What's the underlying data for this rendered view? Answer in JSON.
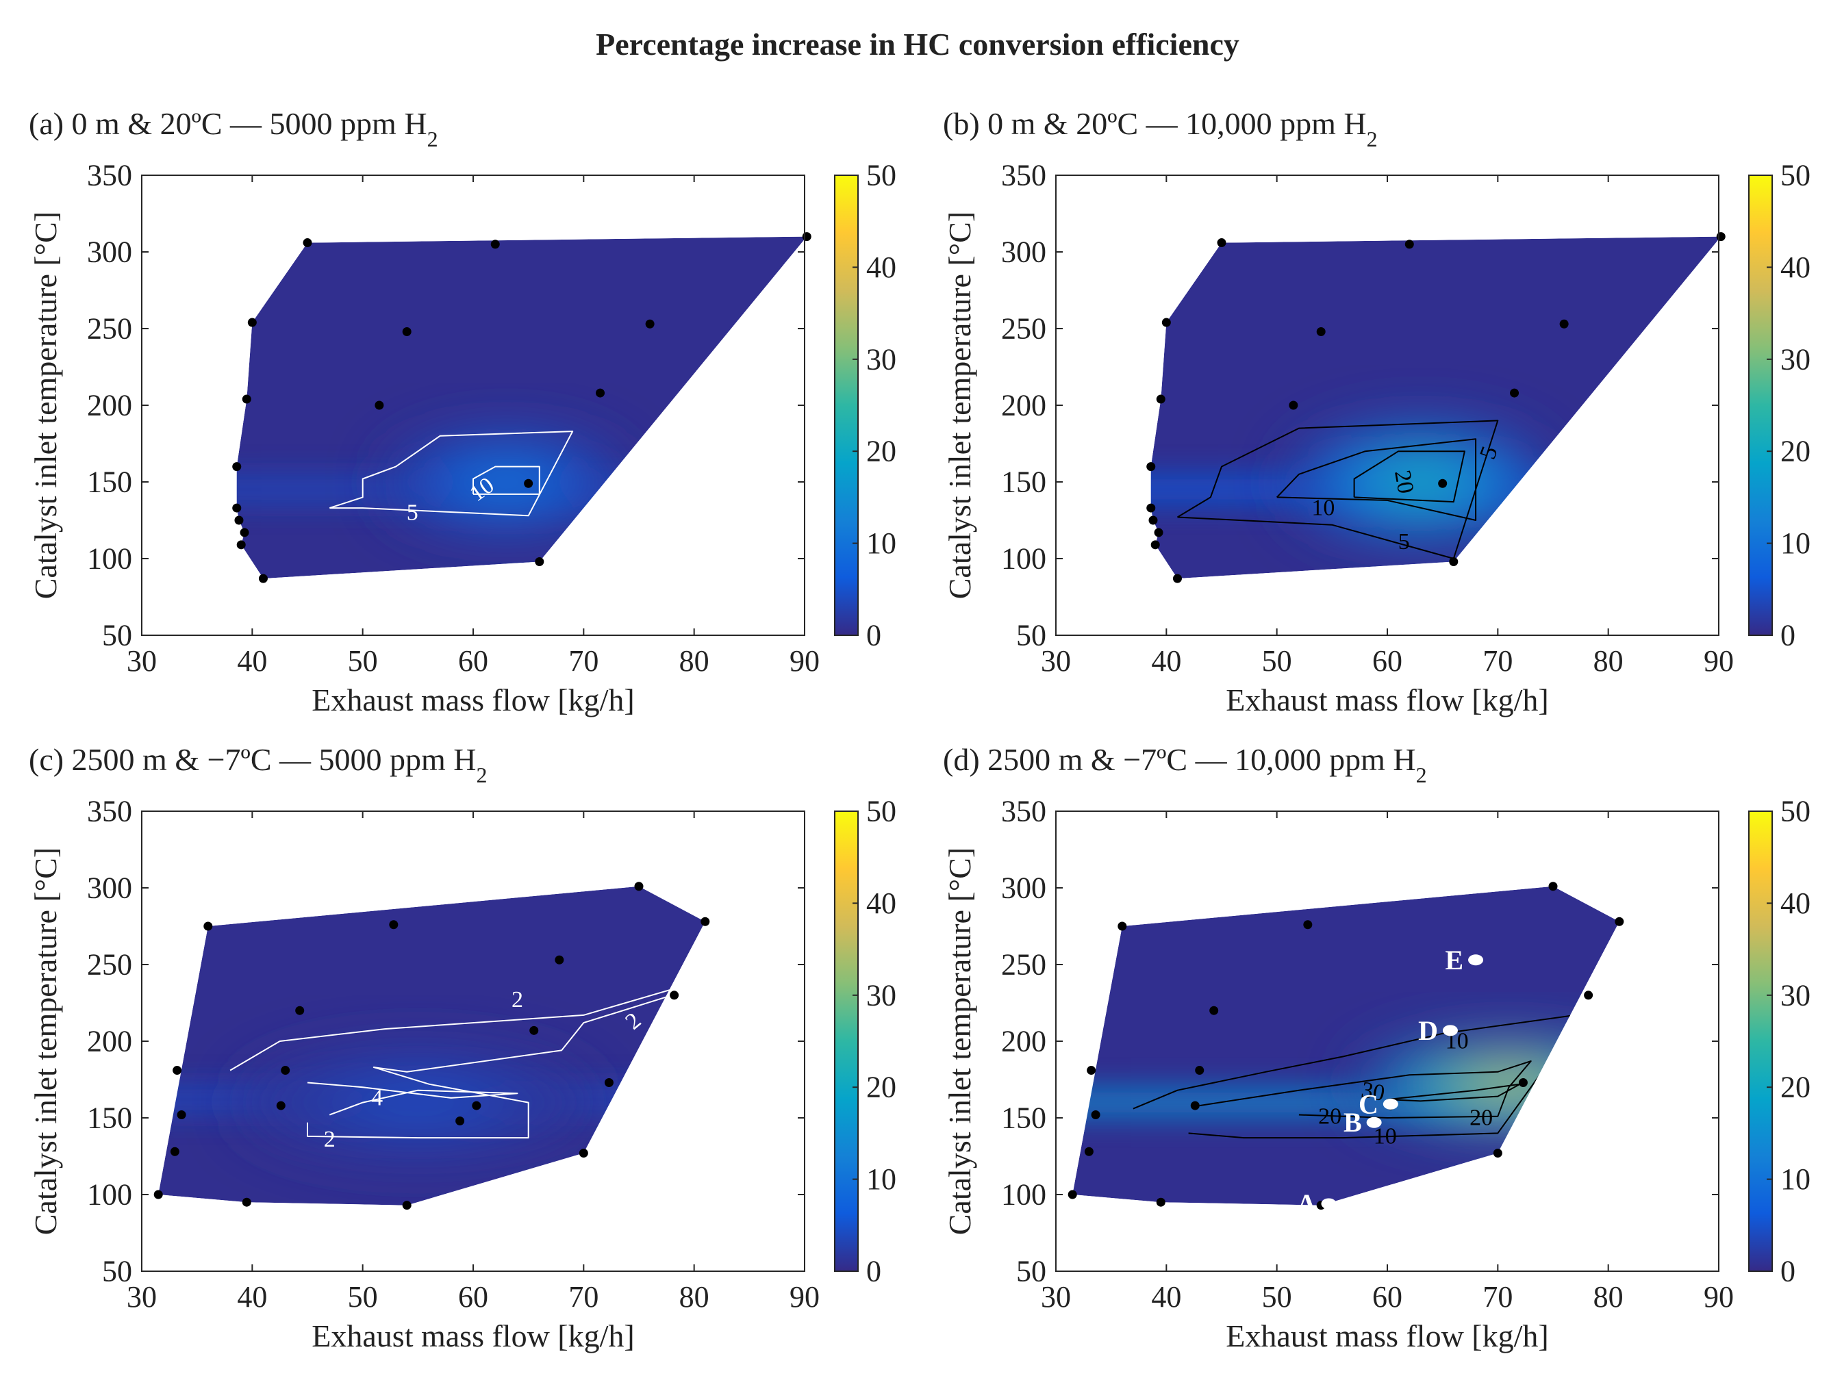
{
  "figure": {
    "title": "Percentage increase in HC conversion efficiency"
  },
  "colors": {
    "parula_stops": [
      "#352a87",
      "#0f5cdd",
      "#1481d6",
      "#06a4ca",
      "#2eb7a4",
      "#87bf77",
      "#d1bb59",
      "#fec832",
      "#f9fb0e"
    ],
    "contour_white": "#ffffff",
    "contour_black": "#000000",
    "axis": "#262626"
  },
  "chart_data": [
    {
      "type": "contour",
      "panel": "a",
      "title_main": "(a) 0 m & 20ºC — 5000 ppm H",
      "title_sub": "2",
      "xlabel": "Exhaust mass flow [kg/h]",
      "ylabel": "Catalyst inlet temperature [°C]",
      "xlim": [
        30,
        90
      ],
      "ylim": [
        50,
        350
      ],
      "xticks": [
        30,
        40,
        50,
        60,
        70,
        80,
        90
      ],
      "yticks": [
        50,
        100,
        150,
        200,
        250,
        300,
        350
      ],
      "clim": [
        0,
        50
      ],
      "cbar_ticks": [
        0,
        10,
        20,
        30,
        40,
        50
      ],
      "hull": [
        [
          41,
          87
        ],
        [
          66,
          98
        ],
        [
          90.2,
          310
        ],
        [
          45,
          306
        ],
        [
          40,
          254
        ],
        [
          39.5,
          204
        ],
        [
          38.6,
          160
        ],
        [
          38.6,
          133
        ],
        [
          38.8,
          125
        ],
        [
          39.3,
          117
        ],
        [
          39,
          109
        ]
      ],
      "hotspot": {
        "x": 63,
        "y": 150,
        "value": 12,
        "rx": 11,
        "ry": 32
      },
      "band": {
        "y": 145,
        "value": 4
      },
      "points": [
        [
          41,
          87
        ],
        [
          66,
          98
        ],
        [
          39,
          109
        ],
        [
          39.3,
          117
        ],
        [
          38.8,
          125
        ],
        [
          38.6,
          133
        ],
        [
          38.6,
          160
        ],
        [
          39.5,
          204
        ],
        [
          40,
          254
        ],
        [
          45,
          306
        ],
        [
          62,
          305
        ],
        [
          54,
          248
        ],
        [
          51.5,
          200
        ],
        [
          65,
          149
        ],
        [
          71.5,
          208
        ],
        [
          76,
          253
        ],
        [
          90.2,
          310
        ]
      ],
      "contours": [
        {
          "level": 5,
          "color": "white",
          "path": [
            [
              47,
              133
            ],
            [
              50,
              133
            ],
            [
              59,
              130
            ],
            [
              65,
              128
            ],
            [
              69,
              183
            ],
            [
              57,
              180
            ],
            [
              53,
              160
            ],
            [
              50,
              152
            ],
            [
              50,
              140
            ],
            [
              47,
              133
            ]
          ]
        },
        {
          "level": 10,
          "color": "white",
          "path": [
            [
              60,
              142
            ],
            [
              66,
              142
            ],
            [
              66,
              160
            ],
            [
              62,
              160
            ],
            [
              60,
              152
            ],
            [
              60,
              142
            ]
          ]
        }
      ],
      "contour_labels": [
        {
          "text": "5",
          "x": 54.5,
          "y": 130,
          "color": "white",
          "rot": 0
        },
        {
          "text": "10",
          "x": 60.8,
          "y": 145,
          "color": "white",
          "rot": -35
        }
      ],
      "markers": []
    },
    {
      "type": "contour",
      "panel": "b",
      "title_main": "(b) 0 m & 20ºC — 10,000 ppm H",
      "title_sub": "2",
      "xlabel": "Exhaust mass flow [kg/h]",
      "ylabel": "Catalyst inlet temperature [°C]",
      "xlim": [
        30,
        90
      ],
      "ylim": [
        50,
        350
      ],
      "xticks": [
        30,
        40,
        50,
        60,
        70,
        80,
        90
      ],
      "yticks": [
        50,
        100,
        150,
        200,
        250,
        300,
        350
      ],
      "clim": [
        0,
        50
      ],
      "cbar_ticks": [
        0,
        10,
        20,
        30,
        40,
        50
      ],
      "hull": [
        [
          41,
          87
        ],
        [
          66,
          98
        ],
        [
          90.2,
          310
        ],
        [
          45,
          306
        ],
        [
          40,
          254
        ],
        [
          39.5,
          204
        ],
        [
          38.6,
          160
        ],
        [
          38.6,
          133
        ],
        [
          38.8,
          125
        ],
        [
          39.3,
          117
        ],
        [
          39,
          109
        ]
      ],
      "hotspot": {
        "x": 63,
        "y": 150,
        "value": 24,
        "rx": 12,
        "ry": 38
      },
      "band": {
        "y": 145,
        "value": 6
      },
      "points": [
        [
          41,
          87
        ],
        [
          66,
          98
        ],
        [
          39,
          109
        ],
        [
          39.3,
          117
        ],
        [
          38.8,
          125
        ],
        [
          38.6,
          133
        ],
        [
          38.6,
          160
        ],
        [
          39.5,
          204
        ],
        [
          40,
          254
        ],
        [
          45,
          306
        ],
        [
          62,
          305
        ],
        [
          54,
          248
        ],
        [
          51.5,
          200
        ],
        [
          65,
          149
        ],
        [
          71.5,
          208
        ],
        [
          76,
          253
        ],
        [
          90.2,
          310
        ]
      ],
      "contours": [
        {
          "level": 5,
          "color": "black",
          "path": [
            [
              41,
              127
            ],
            [
              55,
              122
            ],
            [
              66,
              100
            ],
            [
              70,
              190
            ],
            [
              52,
              185
            ],
            [
              45,
              160
            ],
            [
              44,
              140
            ],
            [
              41,
              127
            ]
          ]
        },
        {
          "level": 10,
          "color": "black",
          "path": [
            [
              50,
              140
            ],
            [
              60,
              138
            ],
            [
              68,
              125
            ],
            [
              68,
              178
            ],
            [
              58,
              170
            ],
            [
              52,
              155
            ],
            [
              50,
              140
            ]
          ]
        },
        {
          "level": 20,
          "color": "black",
          "path": [
            [
              57,
              140
            ],
            [
              66,
              137
            ],
            [
              67,
              170
            ],
            [
              61,
              170
            ],
            [
              57,
              152
            ],
            [
              57,
              140
            ]
          ]
        }
      ],
      "contour_labels": [
        {
          "text": "10",
          "x": 54.2,
          "y": 133,
          "color": "black",
          "rot": 0
        },
        {
          "text": "5",
          "x": 61.5,
          "y": 111,
          "color": "black",
          "rot": 0
        },
        {
          "text": "5",
          "x": 69.2,
          "y": 169,
          "color": "black",
          "rot": -70
        },
        {
          "text": "20",
          "x": 61.5,
          "y": 150,
          "color": "black",
          "rot": 80
        }
      ],
      "markers": []
    },
    {
      "type": "contour",
      "panel": "c",
      "title_main": "(c) 2500 m & −7ºC — 5000 ppm H",
      "title_sub": "2",
      "xlabel": "Exhaust mass flow [kg/h]",
      "ylabel": "Catalyst inlet temperature [°C]",
      "xlim": [
        30,
        90
      ],
      "ylim": [
        50,
        350
      ],
      "xticks": [
        30,
        40,
        50,
        60,
        70,
        80,
        90
      ],
      "yticks": [
        50,
        100,
        150,
        200,
        250,
        300,
        350
      ],
      "clim": [
        0,
        50
      ],
      "cbar_ticks": [
        0,
        10,
        20,
        30,
        40,
        50
      ],
      "hull": [
        [
          31.5,
          100
        ],
        [
          39.5,
          95
        ],
        [
          54,
          93
        ],
        [
          70,
          127
        ],
        [
          81,
          278
        ],
        [
          75,
          301
        ],
        [
          36,
          275
        ]
      ],
      "hotspot": {
        "x": 55,
        "y": 160,
        "value": 5,
        "rx": 16,
        "ry": 35
      },
      "band": {
        "y": 162,
        "value": 4
      },
      "points": [
        [
          31.5,
          100
        ],
        [
          39.5,
          95
        ],
        [
          54,
          93
        ],
        [
          70,
          127
        ],
        [
          72.3,
          173
        ],
        [
          78.2,
          230
        ],
        [
          81,
          278
        ],
        [
          75,
          301
        ],
        [
          67.8,
          253
        ],
        [
          65.5,
          207
        ],
        [
          52.8,
          276
        ],
        [
          44.3,
          220
        ],
        [
          36,
          275
        ],
        [
          33.2,
          181
        ],
        [
          33.6,
          152
        ],
        [
          33,
          128
        ],
        [
          42.6,
          158
        ],
        [
          43,
          181
        ],
        [
          58.8,
          148
        ],
        [
          60.3,
          158
        ]
      ],
      "contours": [
        {
          "level": 2,
          "color": "white",
          "path": [
            [
              38,
              181
            ],
            [
              42.5,
              200
            ],
            [
              52,
              208
            ],
            [
              70,
              217
            ],
            [
              79,
              236
            ],
            [
              78,
              230
            ],
            [
              70,
              212
            ],
            [
              68,
              194
            ],
            [
              54,
              180
            ],
            [
              51,
              183
            ],
            [
              56,
              172
            ],
            [
              65,
              160
            ],
            [
              65,
              137
            ],
            [
              55,
              137
            ],
            [
              45,
              138
            ],
            [
              45,
              147
            ]
          ]
        },
        {
          "level": 4,
          "color": "white",
          "path": [
            [
              45,
              173
            ],
            [
              50,
              170
            ],
            [
              58,
              163
            ],
            [
              64,
              166
            ],
            [
              55,
              168
            ],
            [
              50,
              160
            ],
            [
              47,
              152
            ]
          ]
        }
      ],
      "contour_labels": [
        {
          "text": "2",
          "x": 64,
          "y": 227,
          "color": "white",
          "rot": 0
        },
        {
          "text": "2",
          "x": 74.5,
          "y": 213,
          "color": "white",
          "rot": -40
        },
        {
          "text": "4",
          "x": 51.3,
          "y": 163,
          "color": "white",
          "rot": 0
        },
        {
          "text": "2",
          "x": 47,
          "y": 136,
          "color": "white",
          "rot": 0
        }
      ],
      "markers": []
    },
    {
      "type": "contour",
      "panel": "d",
      "title_main": "(d) 2500 m & −7ºC — 10,000 ppm H",
      "title_sub": "2",
      "xlabel": "Exhaust mass flow [kg/h]",
      "ylabel": "Catalyst inlet temperature [°C]",
      "xlim": [
        30,
        90
      ],
      "ylim": [
        50,
        350
      ],
      "xticks": [
        30,
        40,
        50,
        60,
        70,
        80,
        90
      ],
      "yticks": [
        50,
        100,
        150,
        200,
        250,
        300,
        350
      ],
      "clim": [
        0,
        50
      ],
      "cbar_ticks": [
        0,
        10,
        20,
        30,
        40,
        50
      ],
      "hull": [
        [
          31.5,
          100
        ],
        [
          39.5,
          95
        ],
        [
          54,
          93
        ],
        [
          70,
          127
        ],
        [
          81,
          278
        ],
        [
          75,
          301
        ],
        [
          36,
          275
        ]
      ],
      "hotspot": {
        "x": 71,
        "y": 172,
        "value": 42,
        "rx": 14,
        "ry": 30
      },
      "band": {
        "y": 160,
        "value": 15
      },
      "points": [
        [
          31.5,
          100
        ],
        [
          39.5,
          95
        ],
        [
          54,
          93
        ],
        [
          70,
          127
        ],
        [
          72.3,
          173
        ],
        [
          78.2,
          230
        ],
        [
          81,
          278
        ],
        [
          75,
          301
        ],
        [
          67.8,
          253
        ],
        [
          65.5,
          207
        ],
        [
          52.8,
          276
        ],
        [
          44.3,
          220
        ],
        [
          36,
          275
        ],
        [
          33.2,
          181
        ],
        [
          33.6,
          152
        ],
        [
          33,
          128
        ],
        [
          42.6,
          158
        ],
        [
          43,
          181
        ],
        [
          58.8,
          148
        ],
        [
          60.3,
          158
        ]
      ],
      "contours": [
        {
          "level": 10,
          "color": "black",
          "path": [
            [
              37,
              156
            ],
            [
              41,
              168
            ],
            [
              49,
              180
            ],
            [
              56,
              190
            ],
            [
              65,
              205
            ],
            [
              77,
              217
            ],
            [
              75,
              190
            ],
            [
              70,
              140
            ],
            [
              56,
              137
            ],
            [
              47,
              137
            ],
            [
              42,
              140
            ]
          ]
        },
        {
          "level": 20,
          "color": "black",
          "path": [
            [
              43,
              158
            ],
            [
              52,
              168
            ],
            [
              62,
              178
            ],
            [
              70,
              180
            ],
            [
              73,
              187
            ],
            [
              71,
              170
            ],
            [
              70,
              151
            ],
            [
              60,
              150
            ],
            [
              52,
              152
            ]
          ]
        },
        {
          "level": 30,
          "color": "black",
          "path": [
            [
              60,
              162
            ],
            [
              68,
              168
            ],
            [
              72,
              172
            ],
            [
              70,
              164
            ],
            [
              63,
              161
            ],
            [
              60,
              162
            ]
          ]
        }
      ],
      "contour_labels": [
        {
          "text": "10",
          "x": 66.3,
          "y": 200,
          "color": "black",
          "rot": 0
        },
        {
          "text": "30",
          "x": 58.7,
          "y": 167,
          "color": "black",
          "rot": 10
        },
        {
          "text": "20",
          "x": 54.8,
          "y": 151,
          "color": "black",
          "rot": 0
        },
        {
          "text": "20",
          "x": 68.5,
          "y": 150,
          "color": "black",
          "rot": 0
        },
        {
          "text": "10",
          "x": 59.8,
          "y": 138,
          "color": "black",
          "rot": 0
        }
      ],
      "markers": [
        {
          "label": "A",
          "x": 54.7,
          "y": 94
        },
        {
          "label": "B",
          "x": 58.8,
          "y": 147
        },
        {
          "label": "C",
          "x": 60.3,
          "y": 159
        },
        {
          "label": "D",
          "x": 65.7,
          "y": 207
        },
        {
          "label": "E",
          "x": 68.0,
          "y": 253
        }
      ]
    }
  ]
}
